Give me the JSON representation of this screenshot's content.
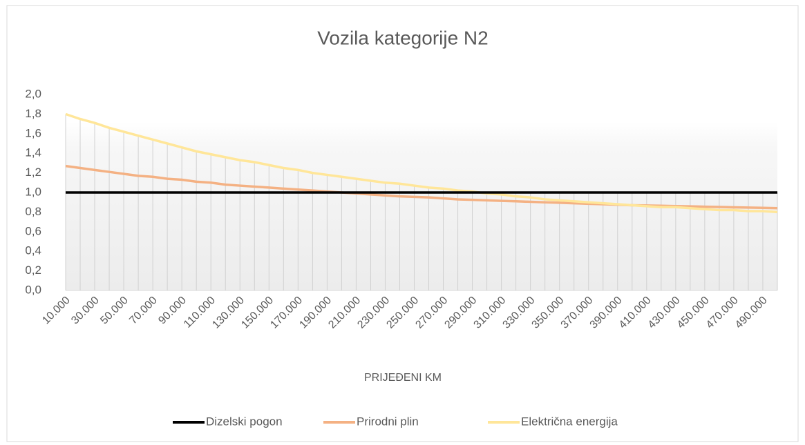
{
  "chart_data": {
    "type": "line",
    "title": "Vozila kategorije N2",
    "x_label": "PRIJEĐENI KM",
    "categories": [
      "10.000",
      null,
      "30.000",
      null,
      "50.000",
      null,
      "70.000",
      null,
      "90.000",
      null,
      "110.000",
      null,
      "130.000",
      null,
      "150.000",
      null,
      "170.000",
      null,
      "190.000",
      null,
      "210.000",
      null,
      "230.000",
      null,
      "250.000",
      null,
      "270.000",
      null,
      "290.000",
      null,
      "310.000",
      null,
      "330.000",
      null,
      "350.000",
      null,
      "370.000",
      null,
      "390.000",
      null,
      "410.000",
      null,
      "430.000",
      null,
      "450.000",
      null,
      "470.000",
      null,
      "490.000",
      null
    ],
    "series": [
      {
        "name": "Dizelski pogon",
        "color": "#000000",
        "values": [
          1,
          1,
          1,
          1,
          1,
          1,
          1,
          1,
          1,
          1,
          1,
          1,
          1,
          1,
          1,
          1,
          1,
          1,
          1,
          1,
          1,
          1,
          1,
          1,
          1,
          1,
          1,
          1,
          1,
          1,
          1,
          1,
          1,
          1,
          1,
          1,
          1,
          1,
          1,
          1,
          1,
          1,
          1,
          1,
          1,
          1,
          1,
          1,
          1,
          1
        ]
      },
      {
        "name": "Prirodni plin",
        "color": "#f4b183",
        "values": [
          1.27,
          1.25,
          1.23,
          1.21,
          1.19,
          1.17,
          1.16,
          1.14,
          1.13,
          1.11,
          1.1,
          1.08,
          1.07,
          1.06,
          1.05,
          1.04,
          1.03,
          1.02,
          1.01,
          1.0,
          0.99,
          0.98,
          0.97,
          0.96,
          0.955,
          0.95,
          0.94,
          0.93,
          0.925,
          0.92,
          0.915,
          0.91,
          0.905,
          0.9,
          0.895,
          0.89,
          0.885,
          0.88,
          0.875,
          0.87,
          0.867,
          0.864,
          0.861,
          0.858,
          0.855,
          0.852,
          0.849,
          0.846,
          0.843,
          0.84
        ]
      },
      {
        "name": "Električna energija",
        "color": "#ffe699",
        "values": [
          1.8,
          1.75,
          1.71,
          1.66,
          1.62,
          1.58,
          1.54,
          1.5,
          1.46,
          1.42,
          1.39,
          1.36,
          1.33,
          1.31,
          1.28,
          1.25,
          1.23,
          1.2,
          1.18,
          1.16,
          1.14,
          1.12,
          1.1,
          1.09,
          1.07,
          1.05,
          1.04,
          1.02,
          1.01,
          0.99,
          0.98,
          0.96,
          0.95,
          0.93,
          0.92,
          0.91,
          0.9,
          0.89,
          0.88,
          0.87,
          0.86,
          0.85,
          0.85,
          0.84,
          0.83,
          0.82,
          0.82,
          0.81,
          0.81,
          0.8
        ]
      }
    ],
    "ylim": [
      0,
      2
    ],
    "yticks": [
      {
        "value": 0,
        "label": "0,0"
      },
      {
        "value": 0.2,
        "label": "0,2"
      },
      {
        "value": 0.4,
        "label": "0,4"
      },
      {
        "value": 0.6,
        "label": "0,6"
      },
      {
        "value": 0.8,
        "label": "0,8"
      },
      {
        "value": 1,
        "label": "1,0"
      },
      {
        "value": 1.2,
        "label": "1,2"
      },
      {
        "value": 1.4,
        "label": "1,4"
      },
      {
        "value": 1.6,
        "label": "1,6"
      },
      {
        "value": 1.8,
        "label": "1,8"
      },
      {
        "value": 2,
        "label": "2,0"
      }
    ],
    "drop_lines": true,
    "legend": "bottom"
  }
}
